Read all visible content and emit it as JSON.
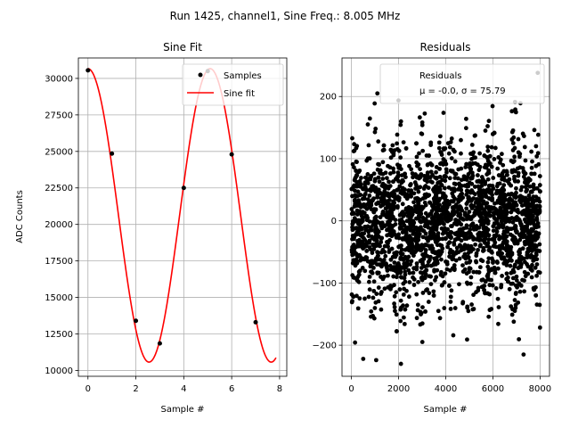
{
  "suptitle": "Run 1425, channel1, Sine Freq.: 8.005 MHz",
  "chart_data": [
    {
      "type": "scatter",
      "title": "Sine Fit",
      "xlabel": "Sample #",
      "ylabel": "ADC Counts",
      "xlim": [
        -0.4,
        8.3
      ],
      "ylim": [
        9600,
        31400
      ],
      "xticks": [
        0,
        2,
        4,
        6,
        8
      ],
      "yticks": [
        10000,
        12500,
        15000,
        17500,
        20000,
        22500,
        25000,
        27500,
        30000
      ],
      "grid": true,
      "legend_position": "top-right",
      "series": [
        {
          "name": "Samples",
          "kind": "points",
          "color": "#000000",
          "x": [
            0,
            1,
            2,
            3,
            4,
            5,
            6,
            7
          ],
          "y": [
            30550,
            24850,
            13400,
            11850,
            22500,
            30500,
            24800,
            13300
          ]
        },
        {
          "name": "Sine fit",
          "kind": "line",
          "color": "#ff0000",
          "amplitude": 10050,
          "offset": 20620,
          "period_samples": 5.1,
          "x_peak": 0.0,
          "x_range": [
            0,
            7.85
          ]
        }
      ]
    },
    {
      "type": "scatter",
      "title": "Residuals",
      "xlabel": "Sample #",
      "ylabel": "",
      "xlim": [
        -400,
        8400
      ],
      "ylim": [
        -250,
        262
      ],
      "xticks": [
        0,
        2000,
        4000,
        6000,
        8000
      ],
      "yticks": [
        -200,
        -100,
        0,
        100,
        200
      ],
      "grid": true,
      "legend_position": "top-right",
      "legend_lines": [
        "Residuals",
        "μ = -0.0, σ = 75.79"
      ],
      "series": [
        {
          "name": "Residuals",
          "kind": "points",
          "color": "#000000",
          "x_range": [
            0,
            8000
          ],
          "mean": 0.0,
          "std": 75.79,
          "band_period_samples": 1000,
          "sample_outliers": [
            {
              "x": 500,
              "y": -222
            },
            {
              "x": 1050,
              "y": -224
            },
            {
              "x": 2100,
              "y": -230
            },
            {
              "x": 1100,
              "y": 205
            },
            {
              "x": 7300,
              "y": -215
            },
            {
              "x": 7900,
              "y": 238
            }
          ]
        }
      ]
    }
  ]
}
